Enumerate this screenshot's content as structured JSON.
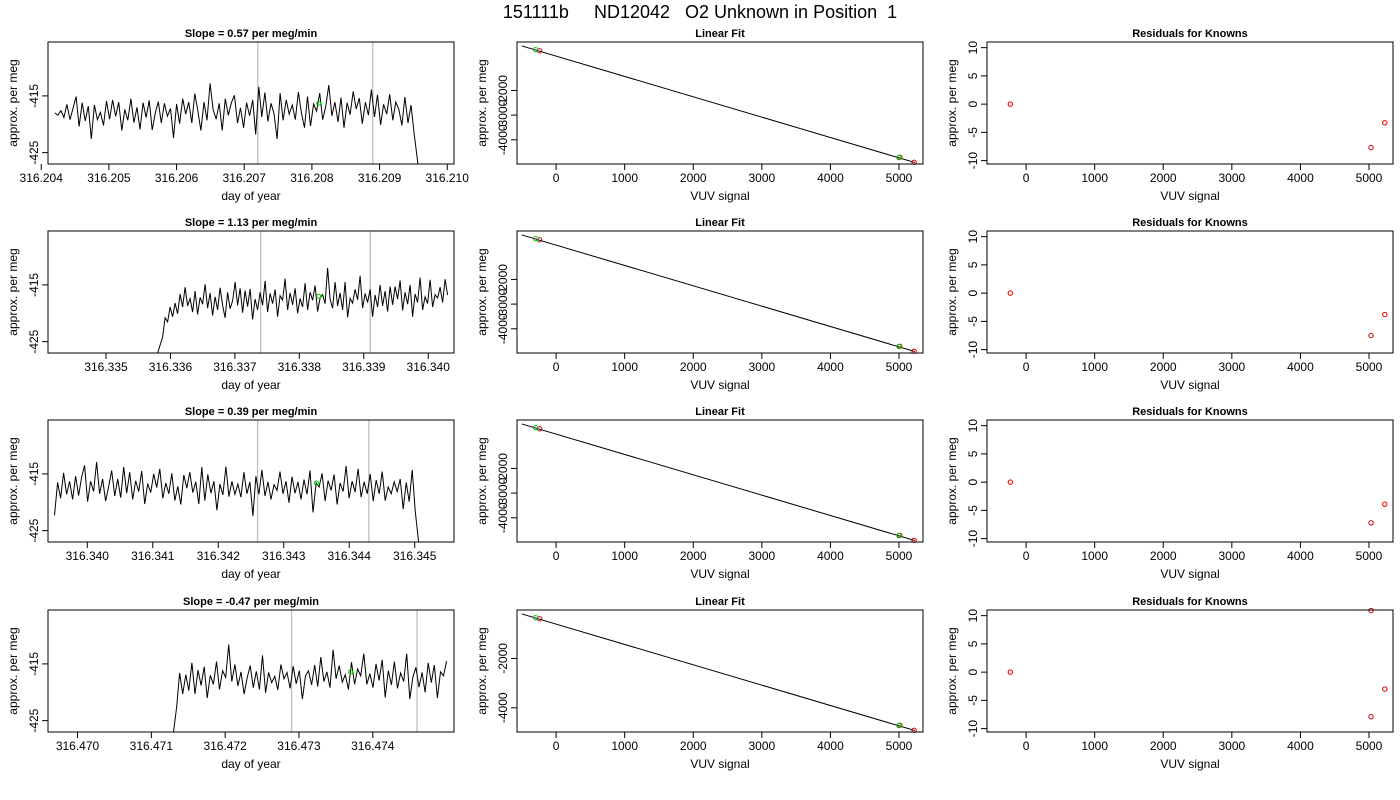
{
  "page_title": "151111b     ND12042   O2 Unknown in Position  1",
  "colors": {
    "trace": "#000000",
    "marker_green": "#00cc00",
    "marker_red": "#cc0000",
    "vline": "#bebebe",
    "frame": "#000000"
  },
  "chart_data": [
    {
      "type": "line",
      "title": "Slope =  0.57  per meg/min",
      "xlabel": "day of year",
      "ylabel": "approx. per meg",
      "x_ticks": [
        "316.204",
        "316.205",
        "316.206",
        "316.207",
        "316.208",
        "316.209",
        "316.210"
      ],
      "xlim": [
        316.2041,
        316.2101
      ],
      "y_ticks": [
        "-415",
        "-425"
      ],
      "ylim": [
        -427,
        -405.5
      ],
      "vlines": [
        316.2072,
        316.2089
      ],
      "marker": {
        "x": 316.2081,
        "y": -416.3
      },
      "series": [
        {
          "x_start": 316.2042,
          "x_end": 316.2096,
          "values": [
            -418,
            -418.4,
            -417.6,
            -418.8,
            -416.5,
            -419.2,
            -417.2,
            -415.1,
            -420.4,
            -416.2,
            -419.4,
            -416.8,
            -422.6,
            -416.6,
            -419.2,
            -417.9,
            -420.2,
            -415.9,
            -419.1,
            -415.7,
            -418.6,
            -416.1,
            -421.1,
            -417.4,
            -419.3,
            -415.5,
            -419.7,
            -417,
            -420.9,
            -416.2,
            -418.8,
            -415.8,
            -421,
            -418,
            -416,
            -419.8,
            -416.3,
            -418.6,
            -417.2,
            -422.4,
            -416.4,
            -419.9,
            -415.5,
            -418.2,
            -416.1,
            -419.8,
            -414.6,
            -417.7,
            -421.1,
            -416.1,
            -419.3,
            -412.8,
            -417.4,
            -419.1,
            -416.3,
            -421.1,
            -415.5,
            -418.4,
            -416.2,
            -414.9,
            -419.8,
            -417.1,
            -420.6,
            -416.2,
            -418.5,
            -415.7,
            -421.8,
            -413.4,
            -418.7,
            -414.4,
            -419.5,
            -416.3,
            -418.1,
            -422.6,
            -414.5,
            -419.3,
            -415.7,
            -418.2,
            -416.6,
            -419.2,
            -414.3,
            -418,
            -420.6,
            -415.1,
            -420.3,
            -416.4,
            -417.7,
            -414.5,
            -419.2,
            -416.8,
            -413.1,
            -418.5,
            -416.1,
            -419.6,
            -415.3,
            -420.6,
            -416.2,
            -418.3,
            -414.2,
            -417.3,
            -415.4,
            -419.9,
            -416.1,
            -418.4,
            -413.9,
            -418.7,
            -414.8,
            -420.1,
            -416.5,
            -418.2,
            -414.7,
            -419.3,
            -416.1,
            -417.4,
            -420.2,
            -415.2,
            -419.8,
            -416.6,
            -421.6,
            -425.8,
            -431
          ]
        }
      ]
    },
    {
      "type": "scatter",
      "title": "Linear Fit",
      "xlabel": "VUV signal",
      "ylabel": "approx. per meg",
      "x_ticks": [
        "0",
        "1000",
        "2000",
        "3000",
        "4000",
        "5000"
      ],
      "xlim": [
        -570,
        5350
      ],
      "y_ticks": [
        "-2000",
        "-3000",
        "-4000"
      ],
      "ylim": [
        -4980,
        -40
      ],
      "fit_line": [
        [
          -500,
          -200
        ],
        [
          5230,
          -4920
        ]
      ],
      "points_red": [
        [
          -240,
          -395
        ],
        [
          5010,
          -4710
        ],
        [
          5220,
          -4910
        ]
      ],
      "points_green": [
        [
          -300,
          -350
        ],
        [
          5000,
          -4720
        ]
      ]
    },
    {
      "type": "scatter",
      "title": "Residuals for Knowns",
      "xlabel": "VUV signal",
      "ylabel": "approx. per meg",
      "x_ticks": [
        "0",
        "1000",
        "2000",
        "3000",
        "4000",
        "5000"
      ],
      "xlim": [
        -570,
        5350
      ],
      "y_ticks": [
        "10",
        "5",
        "0",
        "-5",
        "-10"
      ],
      "ylim": [
        -10.6,
        11
      ],
      "points_red": [
        [
          -230,
          0
        ],
        [
          5030,
          -7.7
        ],
        [
          5230,
          -3.3
        ]
      ]
    },
    {
      "type": "line",
      "title": "Slope =  1.13  per meg/min",
      "xlabel": "day of year",
      "ylabel": "approx. per meg",
      "x_ticks": [
        "316.335",
        "316.336",
        "316.337",
        "316.338",
        "316.339",
        "316.340"
      ],
      "xlim": [
        316.3341,
        316.3404
      ],
      "y_ticks": [
        "-415",
        "-425"
      ],
      "ylim": [
        -427,
        -405.5
      ],
      "vlines": [
        316.3374,
        316.3391
      ],
      "marker": {
        "x": 316.3383,
        "y": -417
      },
      "series": [
        {
          "x_start": 316.3358,
          "x_end": 316.3403,
          "values": [
            -427,
            -425.6,
            -424.2,
            -420.8,
            -421.5,
            -418.9,
            -420.6,
            -418.2,
            -420.1,
            -416.6,
            -418.9,
            -415.4,
            -418.7,
            -417.4,
            -419.8,
            -416.1,
            -420.2,
            -417.2,
            -418.4,
            -414.9,
            -419.1,
            -416.4,
            -420.4,
            -417.1,
            -419.4,
            -415.5,
            -418.6,
            -420.8,
            -416.3,
            -419.2,
            -417.8,
            -414.5,
            -418.6,
            -415.6,
            -419.9,
            -416,
            -418.8,
            -415.7,
            -421.1,
            -417.5,
            -419.4,
            -416.3,
            -418.6,
            -414.3,
            -419.8,
            -416.5,
            -418.3,
            -415.8,
            -420.6,
            -416.9,
            -417.7,
            -413.9,
            -419.4,
            -416.4,
            -418.5,
            -415.6,
            -420,
            -417.4,
            -418.9,
            -414.7,
            -419.4,
            -416.3,
            -417.7,
            -415.1,
            -419.7,
            -417.3,
            -416.7,
            -418.3,
            -412,
            -417.5,
            -419.1,
            -414.5,
            -418.7,
            -416.4,
            -419.4,
            -414.5,
            -420.7,
            -417.4,
            -418.2,
            -415.8,
            -417.6,
            -413.4,
            -419.1,
            -416.5,
            -418.1,
            -415.8,
            -420.6,
            -416.8,
            -418.9,
            -415,
            -418.7,
            -416.1,
            -419.7,
            -415.3,
            -418.5,
            -415.3,
            -417.5,
            -414.2,
            -419.5,
            -416.3,
            -418.4,
            -415,
            -420.6,
            -416.6,
            -418.1,
            -413.7,
            -419.4,
            -417.1,
            -418.3,
            -414.1,
            -418.9,
            -416.7,
            -417.3,
            -415.4,
            -418.1,
            -414,
            -416.8
          ]
        }
      ]
    },
    {
      "type": "scatter",
      "title": "Linear Fit",
      "xlabel": "VUV signal",
      "ylabel": "approx. per meg",
      "x_ticks": [
        "0",
        "1000",
        "2000",
        "3000",
        "4000",
        "5000"
      ],
      "xlim": [
        -570,
        5350
      ],
      "y_ticks": [
        "-2000",
        "-3000",
        "-4000"
      ],
      "ylim": [
        -4980,
        -40
      ],
      "fit_line": [
        [
          -500,
          -200
        ],
        [
          5230,
          -4920
        ]
      ],
      "points_red": [
        [
          -240,
          -395
        ],
        [
          5010,
          -4710
        ],
        [
          5220,
          -4910
        ]
      ],
      "points_green": [
        [
          -300,
          -350
        ],
        [
          5000,
          -4720
        ]
      ]
    },
    {
      "type": "scatter",
      "title": "Residuals for Knowns",
      "xlabel": "VUV signal",
      "ylabel": "approx. per meg",
      "x_ticks": [
        "0",
        "1000",
        "2000",
        "3000",
        "4000",
        "5000"
      ],
      "xlim": [
        -570,
        5350
      ],
      "y_ticks": [
        "10",
        "5",
        "0",
        "-5",
        "-10"
      ],
      "ylim": [
        -10.6,
        11
      ],
      "points_red": [
        [
          -230,
          0
        ],
        [
          5030,
          -7.5
        ],
        [
          5230,
          -3.8
        ]
      ]
    },
    {
      "type": "line",
      "title": "Slope =  0.39  per meg/min",
      "xlabel": "day of year",
      "ylabel": "approx. per meg",
      "x_ticks": [
        "316.340",
        "316.341",
        "316.342",
        "316.343",
        "316.344",
        "316.345"
      ],
      "xlim": [
        316.3394,
        316.3456
      ],
      "y_ticks": [
        "-415",
        "-425"
      ],
      "ylim": [
        -427,
        -405.5
      ],
      "vlines": [
        316.3426,
        316.3443
      ],
      "marker": {
        "x": 316.3435,
        "y": -416.6
      },
      "series": [
        {
          "x_start": 316.3395,
          "x_end": 316.3451,
          "values": [
            -422.3,
            -416.5,
            -419.3,
            -414.8,
            -418.6,
            -416.3,
            -419.5,
            -415.4,
            -418.8,
            -415.6,
            -413.5,
            -419.9,
            -416.3,
            -418.1,
            -412.9,
            -418.5,
            -415.9,
            -419.8,
            -417.2,
            -414.4,
            -418.9,
            -415.9,
            -419.2,
            -413.8,
            -418.4,
            -414.7,
            -419.5,
            -416.2,
            -418.1,
            -414.5,
            -420.3,
            -416.7,
            -418.3,
            -415,
            -417.4,
            -414.1,
            -419.3,
            -416.6,
            -418.5,
            -414.9,
            -419.7,
            -417.2,
            -420.4,
            -415.2,
            -417.5,
            -414.7,
            -418.3,
            -416.4,
            -420.3,
            -413.8,
            -419.7,
            -415.1,
            -418.4,
            -416.3,
            -421.4,
            -416.8,
            -418.7,
            -413.7,
            -419,
            -416.3,
            -418.6,
            -416.8,
            -419.1,
            -414.7,
            -418.5,
            -416.4,
            -422.4,
            -415.4,
            -418.6,
            -414.3,
            -418.9,
            -416.4,
            -419.5,
            -416.9,
            -417.9,
            -414.6,
            -418.5,
            -416.3,
            -420.1,
            -415.5,
            -418.4,
            -416.4,
            -419.5,
            -416,
            -418.6,
            -414.4,
            -421.8,
            -416.6,
            -417.3,
            -414.9,
            -419.8,
            -416.2,
            -417.9,
            -415.1,
            -420.4,
            -416.6,
            -418.1,
            -413.6,
            -419.3,
            -416.3,
            -418.2,
            -414.1,
            -419.1,
            -416.4,
            -418.5,
            -415,
            -419.8,
            -416.1,
            -418.5,
            -414.6,
            -419.7,
            -417.3,
            -418.5,
            -416.4,
            -418.1,
            -415.9,
            -421.2,
            -416.5,
            -419.9,
            -414.3,
            -421.5,
            -426.5,
            -431
          ]
        }
      ]
    },
    {
      "type": "scatter",
      "title": "Linear Fit",
      "xlabel": "VUV signal",
      "ylabel": "approx. per meg",
      "x_ticks": [
        "0",
        "1000",
        "2000",
        "3000",
        "4000",
        "5000"
      ],
      "xlim": [
        -570,
        5350
      ],
      "y_ticks": [
        "-2000",
        "-3000",
        "-4000"
      ],
      "ylim": [
        -4980,
        -40
      ],
      "fit_line": [
        [
          -500,
          -200
        ],
        [
          5230,
          -4920
        ]
      ],
      "points_red": [
        [
          -240,
          -395
        ],
        [
          5010,
          -4710
        ],
        [
          5220,
          -4910
        ]
      ],
      "points_green": [
        [
          -300,
          -350
        ],
        [
          5000,
          -4720
        ]
      ]
    },
    {
      "type": "scatter",
      "title": "Residuals for Knowns",
      "xlabel": "VUV signal",
      "ylabel": "approx. per meg",
      "x_ticks": [
        "0",
        "1000",
        "2000",
        "3000",
        "4000",
        "5000"
      ],
      "xlim": [
        -570,
        5350
      ],
      "y_ticks": [
        "10",
        "5",
        "0",
        "-5",
        "-10"
      ],
      "ylim": [
        -10.6,
        11
      ],
      "points_red": [
        [
          -230,
          0
        ],
        [
          5030,
          -7.2
        ],
        [
          5230,
          -3.9
        ]
      ]
    },
    {
      "type": "line",
      "title": "Slope =  -0.47  per meg/min",
      "xlabel": "day of year",
      "ylabel": "approx. per meg",
      "x_ticks": [
        "316.470",
        "316.471",
        "316.472",
        "316.473",
        "316.474"
      ],
      "xlim": [
        316.4696,
        316.4751
      ],
      "y_ticks": [
        "-415",
        "-425"
      ],
      "ylim": [
        -427,
        -405.5
      ],
      "vlines": [
        316.4729,
        316.4746
      ],
      "marker": {
        "x": 316.4737,
        "y": -416.4
      },
      "series": [
        {
          "x_start": 316.4713,
          "x_end": 316.475,
          "values": [
            -427,
            -422.7,
            -416.6,
            -420.3,
            -416.9,
            -419.7,
            -414.8,
            -420.3,
            -416.1,
            -418.8,
            -415.5,
            -421,
            -417,
            -418.6,
            -414.6,
            -419.5,
            -416.2,
            -417.4,
            -411.6,
            -418.1,
            -415.1,
            -418.9,
            -416.4,
            -420.3,
            -417.5,
            -415.3,
            -419.2,
            -416.3,
            -419.5,
            -413.5,
            -420.1,
            -416.5,
            -418.3,
            -417.2,
            -419.6,
            -415.1,
            -417.6,
            -416.5,
            -419.3,
            -415.4,
            -418.5,
            -416.2,
            -421.2,
            -417.1,
            -416.2,
            -418.7,
            -415.2,
            -419,
            -413.8,
            -418.1,
            -416.4,
            -419.2,
            -412.5,
            -417.6,
            -415.3,
            -418.2,
            -416.9,
            -419.5,
            -414.7,
            -418.6,
            -415.9,
            -417.1,
            -413.2,
            -418.6,
            -416.7,
            -419.2,
            -415,
            -417.9,
            -414.3,
            -420.9,
            -416.2,
            -418.7,
            -414.6,
            -419.3,
            -416.6,
            -418.1,
            -413.2,
            -421.2,
            -417.3,
            -415.6,
            -419.1,
            -416.5,
            -420,
            -414.8,
            -418.3,
            -415.2,
            -421,
            -416.4,
            -417.1,
            -414.5
          ]
        }
      ]
    },
    {
      "type": "scatter",
      "title": "Linear Fit",
      "xlabel": "VUV signal",
      "ylabel": "approx. per meg",
      "x_ticks": [
        "0",
        "1000",
        "2000",
        "3000",
        "4000",
        "5000"
      ],
      "xlim": [
        -570,
        5350
      ],
      "y_ticks": [
        "-2000",
        "-4000"
      ],
      "ylim": [
        -4980,
        -40
      ],
      "fit_line": [
        [
          -500,
          -200
        ],
        [
          5230,
          -4920
        ]
      ],
      "points_red": [
        [
          -240,
          -395
        ],
        [
          5010,
          -4710
        ],
        [
          5220,
          -4910
        ]
      ],
      "points_green": [
        [
          -300,
          -350
        ],
        [
          5000,
          -4720
        ]
      ]
    },
    {
      "type": "scatter",
      "title": "Residuals for Knowns",
      "xlabel": "VUV signal",
      "ylabel": "approx. per meg",
      "x_ticks": [
        "0",
        "1000",
        "2000",
        "3000",
        "4000",
        "5000"
      ],
      "xlim": [
        -570,
        5350
      ],
      "y_ticks": [
        "10",
        "5",
        "0",
        "-5",
        "-10"
      ],
      "ylim": [
        -10.6,
        11
      ],
      "points_red": [
        [
          -230,
          0
        ],
        [
          5030,
          -7.9
        ],
        [
          5230,
          -3
        ],
        [
          5030,
          10.9
        ]
      ]
    }
  ]
}
